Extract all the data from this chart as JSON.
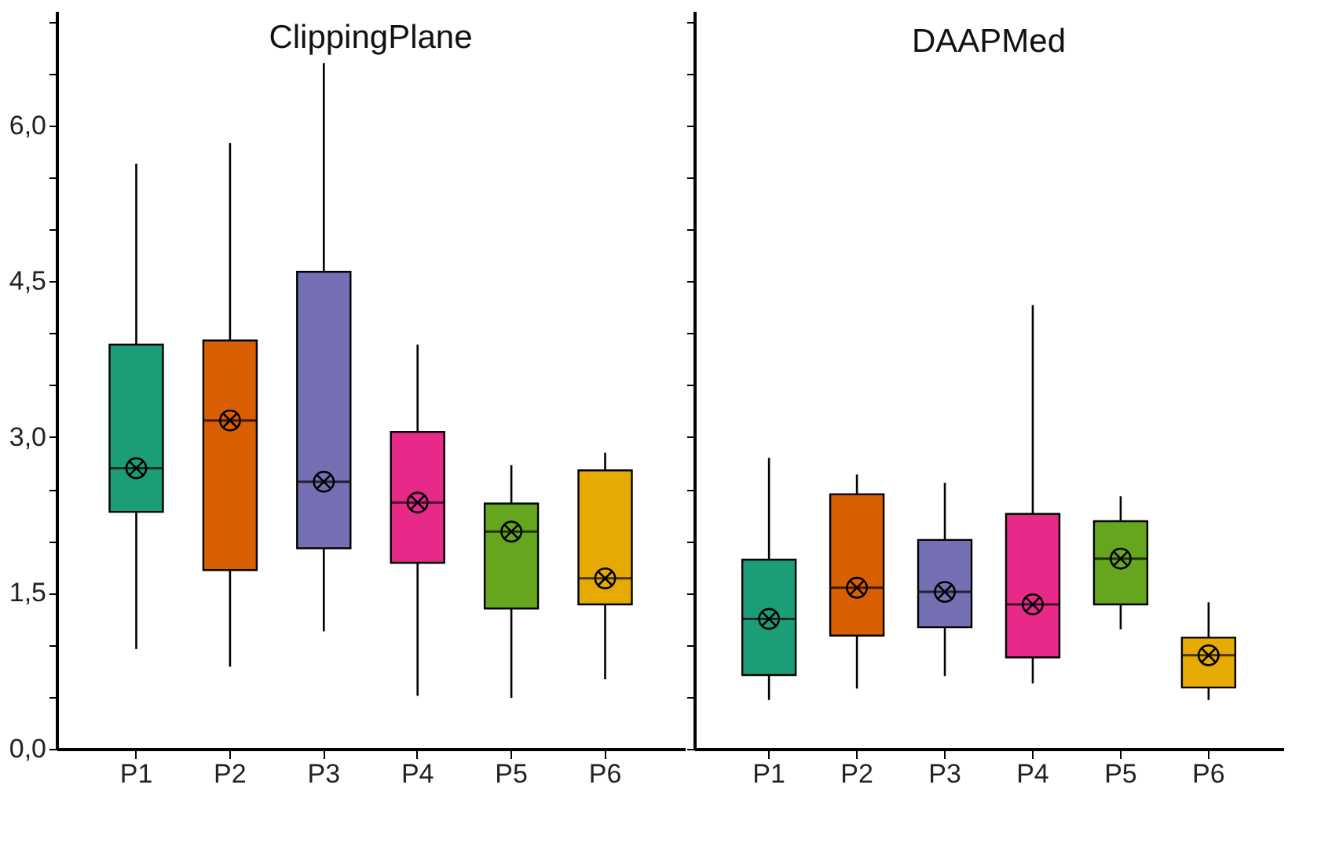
{
  "chart_data": [
    {
      "type": "box",
      "title": "ClippingPlane",
      "categories": [
        "P1",
        "P2",
        "P3",
        "P4",
        "P5",
        "P6"
      ],
      "colors": [
        "#1b9e77",
        "#d95f02",
        "#7570b3",
        "#e7298a",
        "#66a61e",
        "#e6ab02"
      ],
      "marker": "circle",
      "ylim": [
        0,
        7.1
      ],
      "yticks": [
        {
          "value": 0,
          "label": "0,0"
        },
        {
          "value": 0.5,
          "label": null
        },
        {
          "value": 1,
          "label": null
        },
        {
          "value": 1.5,
          "label": "1,5"
        },
        {
          "value": 2,
          "label": null
        },
        {
          "value": 2.5,
          "label": null
        },
        {
          "value": 3,
          "label": "3,0"
        },
        {
          "value": 3.5,
          "label": null
        },
        {
          "value": 4,
          "label": null
        },
        {
          "value": 4.5,
          "label": "4,5"
        },
        {
          "value": 5,
          "label": null
        },
        {
          "value": 5.5,
          "label": null
        },
        {
          "value": 6,
          "label": "6,0"
        },
        {
          "value": 6.5,
          "label": null
        },
        {
          "value": 7,
          "label": null
        }
      ],
      "boxes": [
        {
          "low": 0.96,
          "q1": 2.28,
          "median": 2.7,
          "q3": 3.89,
          "high": 5.63,
          "mean": 2.7
        },
        {
          "low": 0.79,
          "q1": 1.72,
          "median": 3.16,
          "q3": 3.93,
          "high": 5.83,
          "mean": 3.16
        },
        {
          "low": 1.13,
          "q1": 1.93,
          "median": 2.57,
          "q3": 4.59,
          "high": 6.6,
          "mean": 2.57
        },
        {
          "low": 0.51,
          "q1": 1.79,
          "median": 2.37,
          "q3": 3.05,
          "high": 3.89,
          "mean": 2.37
        },
        {
          "low": 0.49,
          "q1": 1.35,
          "median": 2.09,
          "q3": 2.36,
          "high": 2.73,
          "mean": 2.09
        },
        {
          "low": 0.67,
          "q1": 1.39,
          "median": 1.64,
          "q3": 2.68,
          "high": 2.85,
          "mean": 1.64
        }
      ]
    },
    {
      "type": "box",
      "title": "DAAPMed",
      "categories": [
        "P1",
        "P2",
        "P3",
        "P4",
        "P5",
        "P6"
      ],
      "colors": [
        "#1b9e77",
        "#d95f02",
        "#7570b3",
        "#e7298a",
        "#66a61e",
        "#e6ab02"
      ],
      "marker": "circle",
      "ylim": [
        0,
        7.1
      ],
      "tick_labels": "x",
      "yticks": [
        0,
        0.5,
        1,
        1.5,
        2,
        2.5,
        3,
        3.5,
        4,
        4.5,
        5,
        5.5,
        6,
        6.5,
        7
      ],
      "boxes": [
        {
          "low": 0.47,
          "q1": 0.71,
          "median": 1.25,
          "q3": 1.82,
          "high": 2.8,
          "mean": 1.25
        },
        {
          "low": 0.58,
          "q1": 1.09,
          "median": 1.55,
          "q3": 2.45,
          "high": 2.64,
          "mean": 1.55
        },
        {
          "low": 0.7,
          "q1": 1.17,
          "median": 1.51,
          "q3": 2.01,
          "high": 2.56,
          "mean": 1.51
        },
        {
          "low": 0.63,
          "q1": 0.88,
          "median": 1.39,
          "q3": 2.26,
          "high": 4.27,
          "mean": 1.39
        },
        {
          "low": 1.15,
          "q1": 1.39,
          "median": 1.83,
          "q3": 2.19,
          "high": 2.43,
          "mean": 1.83
        },
        {
          "low": 0.47,
          "q1": 0.59,
          "median": 0.9,
          "q3": 1.07,
          "high": 1.41,
          "mean": 0.9
        }
      ]
    }
  ]
}
